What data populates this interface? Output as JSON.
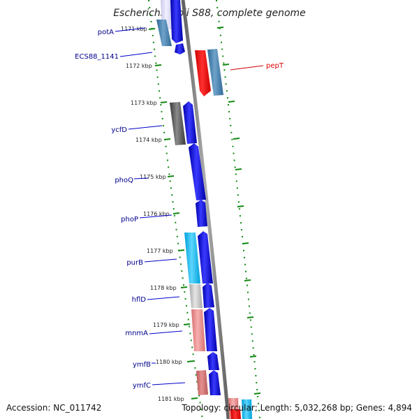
{
  "title": "Escherichia coli S88, complete genome",
  "footer": {
    "accession": "Accession: NC_011742",
    "topology": "Topology: circular; Length: 5,032,268 bp; Genes: 4,894"
  },
  "colors": {
    "backbone": "#808080",
    "tick_dotted": "#118811",
    "label_text": "#00008b",
    "label_line": "#0000cc",
    "pepT": "#dd0000"
  },
  "ticks": [
    "1171 kbp",
    "1172 kbp",
    "1173 kbp",
    "1174 kbp",
    "1175 kbp",
    "1176 kbp",
    "1177 kbp",
    "1178 kbp",
    "1179 kbp",
    "1180 kbp",
    "1181 kbp"
  ],
  "genes": [
    {
      "name": "potA",
      "label": "potA"
    },
    {
      "name": "ecs88-1141",
      "label": "ECS88_1141"
    },
    {
      "name": "ycfd",
      "label": "ycfD"
    },
    {
      "name": "phoq",
      "label": "phoQ"
    },
    {
      "name": "phop",
      "label": "phoP"
    },
    {
      "name": "purb",
      "label": "purB"
    },
    {
      "name": "hfld",
      "label": "hflD"
    },
    {
      "name": "mnma",
      "label": "mnmA"
    },
    {
      "name": "ymfb",
      "label": "ymfB"
    },
    {
      "name": "ymfc",
      "label": "ymfC"
    },
    {
      "name": "pept",
      "label": "pepT"
    }
  ]
}
